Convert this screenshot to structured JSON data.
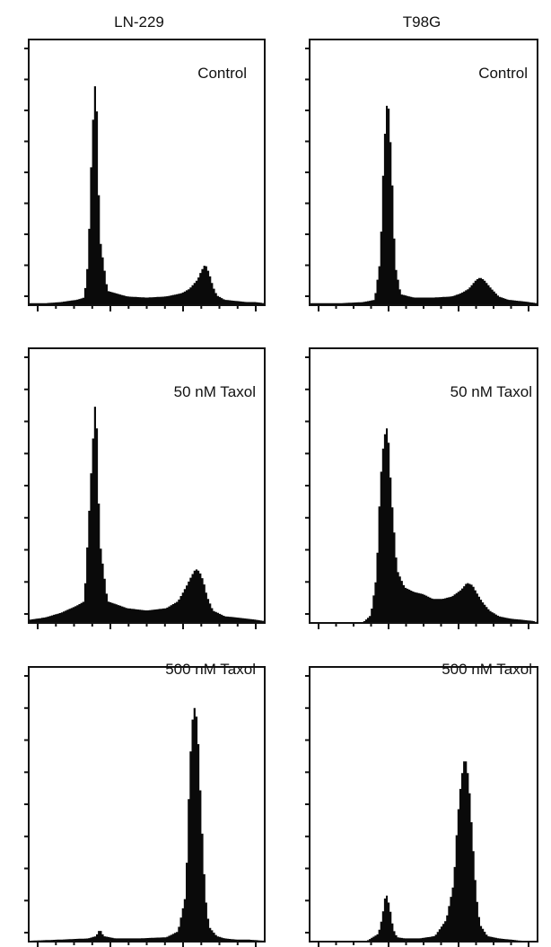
{
  "columns": [
    {
      "title": "LN-229"
    },
    {
      "title": "T98G"
    }
  ],
  "chart_data": [
    {
      "type": "area",
      "column": "LN-229",
      "label": "Control",
      "x": [
        0,
        8,
        16,
        24,
        28,
        30,
        32,
        34,
        36,
        40,
        50,
        60,
        70,
        78,
        82,
        86,
        88,
        90,
        92,
        94,
        96,
        100,
        106,
        111,
        116,
        120
      ],
      "y": [
        1,
        1,
        2,
        4,
        6,
        40,
        150,
        210,
        60,
        12,
        7,
        6,
        7,
        10,
        14,
        22,
        30,
        36,
        28,
        16,
        8,
        4,
        3,
        2,
        2,
        1
      ],
      "xlim": [
        0,
        120
      ],
      "ylim": [
        0,
        236
      ]
    },
    {
      "type": "area",
      "column": "T98G",
      "label": "Control",
      "x": [
        0,
        16,
        28,
        34,
        37,
        39,
        41,
        43,
        45,
        48,
        55,
        65,
        75,
        80,
        84,
        88,
        90,
        92,
        96,
        100,
        105,
        111,
        116,
        120
      ],
      "y": [
        1,
        1,
        2,
        4,
        40,
        140,
        190,
        130,
        35,
        9,
        6,
        6,
        7,
        10,
        14,
        22,
        24,
        22,
        14,
        7,
        4,
        3,
        2,
        1
      ],
      "xlim": [
        0,
        120
      ],
      "ylim": [
        0,
        236
      ]
    },
    {
      "type": "area",
      "column": "LN-229",
      "label": "50 nM Taxol",
      "x": [
        0,
        8,
        16,
        24,
        28,
        30,
        32,
        34,
        36,
        40,
        50,
        60,
        70,
        76,
        80,
        83,
        85,
        87,
        89,
        91,
        94,
        100,
        106,
        111,
        116,
        120
      ],
      "y": [
        2,
        4,
        8,
        14,
        18,
        80,
        145,
        200,
        70,
        18,
        12,
        10,
        12,
        18,
        30,
        40,
        46,
        44,
        36,
        22,
        10,
        5,
        4,
        3,
        2,
        1
      ],
      "xlim": [
        0,
        120
      ],
      "ylim": [
        0,
        236
      ]
    },
    {
      "type": "area",
      "column": "T98G",
      "label": "50 nM Taxol",
      "x": [
        0,
        16,
        28,
        32,
        35,
        37,
        39,
        41,
        43,
        46,
        50,
        55,
        60,
        65,
        70,
        75,
        80,
        83,
        86,
        88,
        91,
        95,
        100,
        106,
        112,
        118,
        120
      ],
      "y": [
        0,
        0,
        0,
        6,
        40,
        120,
        160,
        170,
        110,
        45,
        30,
        26,
        24,
        20,
        20,
        22,
        28,
        34,
        32,
        26,
        18,
        10,
        5,
        3,
        2,
        1,
        0
      ],
      "xlim": [
        0,
        120
      ],
      "ylim": [
        0,
        236
      ]
    },
    {
      "type": "area",
      "column": "LN-229",
      "label": "500 nM Taxol",
      "x": [
        0,
        16,
        30,
        34,
        36,
        38,
        44,
        56,
        70,
        76,
        80,
        82,
        84,
        86,
        88,
        90,
        92,
        96,
        100,
        106,
        112,
        120
      ],
      "y": [
        0,
        1,
        2,
        4,
        10,
        4,
        2,
        2,
        3,
        8,
        40,
        150,
        205,
        190,
        110,
        40,
        12,
        4,
        2,
        1,
        1,
        0
      ],
      "xlim": [
        0,
        120
      ],
      "ylim": [
        0,
        236
      ]
    },
    {
      "type": "area",
      "column": "T98G",
      "label": "500 nM Taxol",
      "x": [
        0,
        16,
        30,
        36,
        38,
        40,
        42,
        44,
        46,
        50,
        58,
        66,
        72,
        76,
        78,
        80,
        82,
        84,
        86,
        88,
        90,
        94,
        100,
        106,
        112,
        120
      ],
      "y": [
        0,
        0,
        0,
        6,
        20,
        42,
        30,
        10,
        3,
        2,
        2,
        4,
        18,
        50,
        105,
        140,
        160,
        140,
        90,
        40,
        14,
        4,
        2,
        1,
        0,
        0
      ],
      "xlim": [
        0,
        120
      ],
      "ylim": [
        0,
        236
      ]
    }
  ]
}
